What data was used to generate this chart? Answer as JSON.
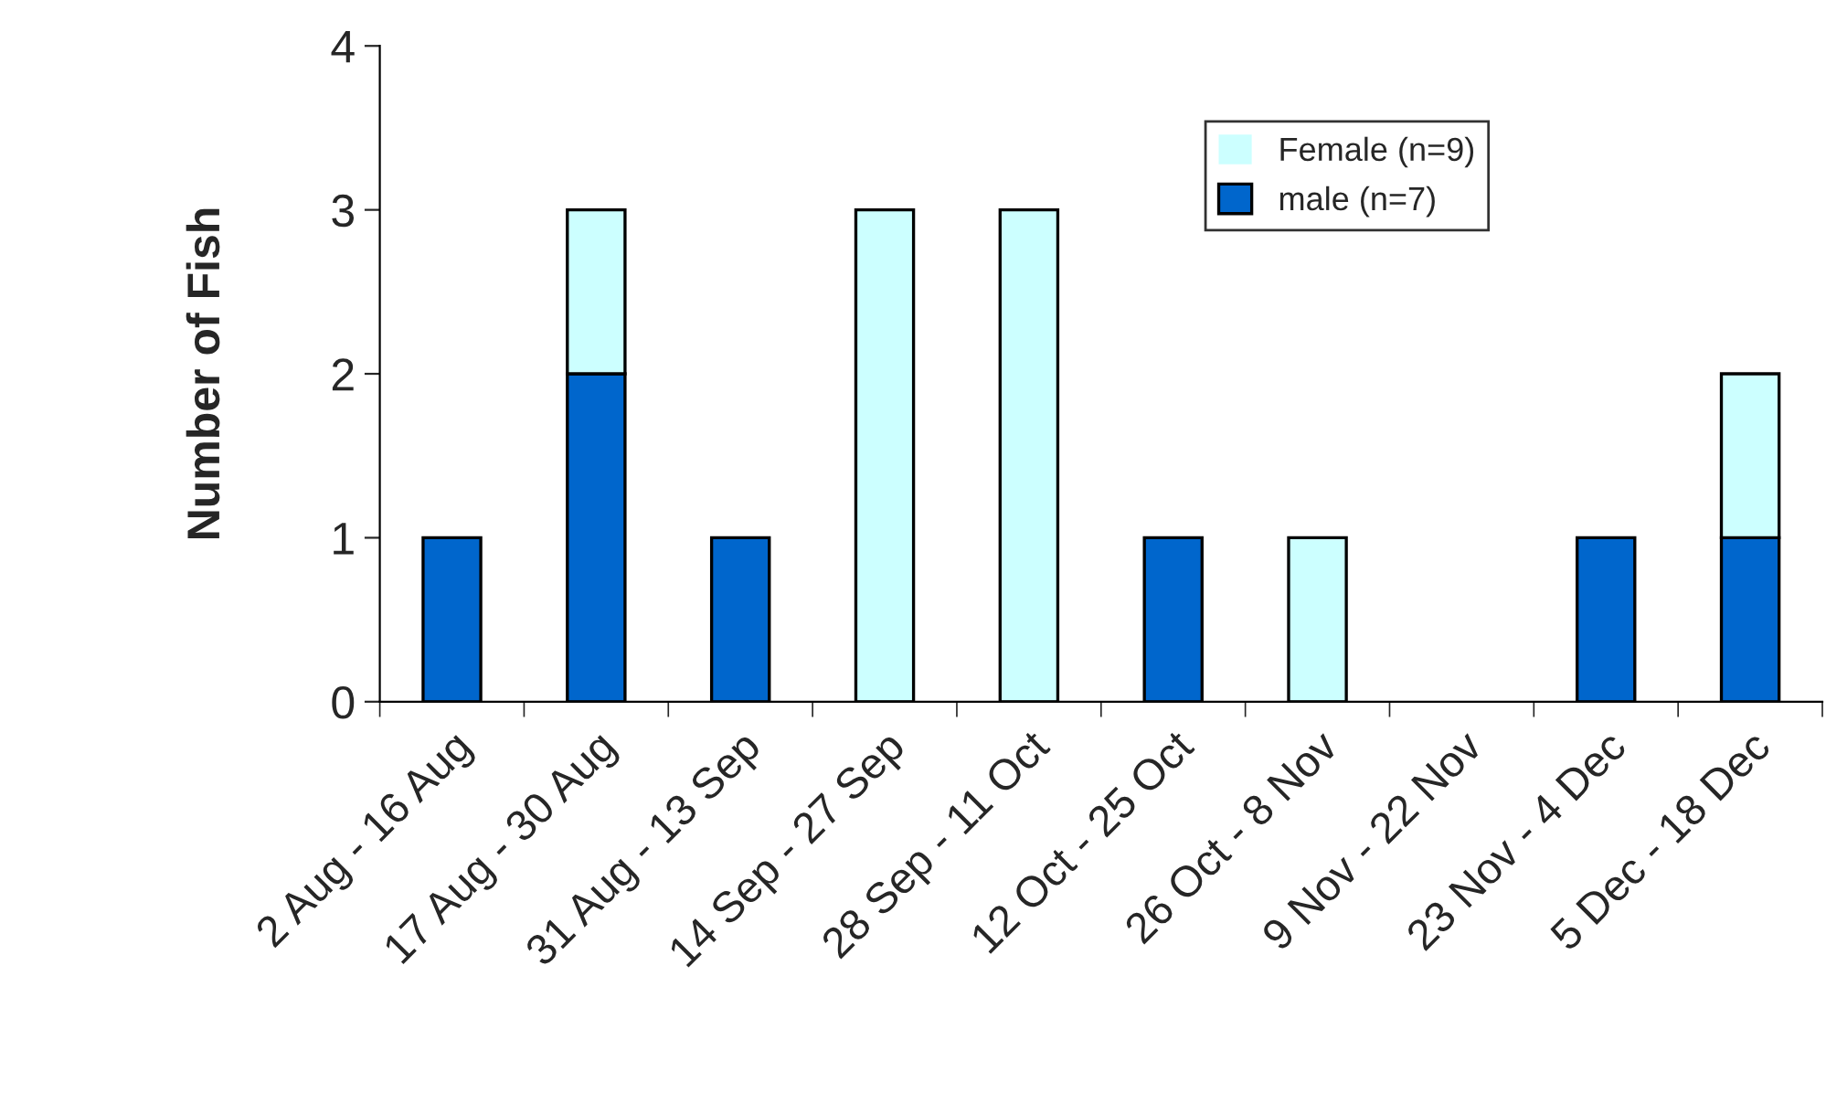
{
  "chart_data": {
    "type": "bar",
    "stacked": true,
    "ylabel": "Number of Fish",
    "categories": [
      "2 Aug - 16 Aug",
      "17 Aug - 30 Aug",
      "31 Aug - 13 Sep",
      "14 Sep - 27 Sep",
      "28 Sep - 11 Oct",
      "12 Oct - 25 Oct",
      "26 Oct - 8 Nov",
      "9 Nov - 22 Nov",
      "23 Nov - 4 Dec",
      "5 Dec - 18 Dec"
    ],
    "series": [
      {
        "name": "male (n=7)",
        "color": "#0066cc",
        "values": [
          1,
          2,
          1,
          0,
          0,
          1,
          0,
          0,
          1,
          1
        ]
      },
      {
        "name": "Female (n=9)",
        "color": "#ccffff",
        "values": [
          0,
          1,
          0,
          3,
          3,
          0,
          1,
          0,
          0,
          1
        ]
      }
    ],
    "ylim": [
      0,
      4
    ],
    "yticks": [
      0,
      1,
      2,
      3,
      4
    ],
    "grid": false,
    "legend": "top right"
  }
}
